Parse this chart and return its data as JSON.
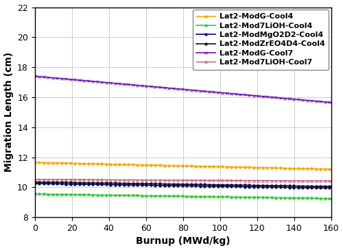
{
  "xlabel": "Burnup (MWd/kg)",
  "ylabel": "Migration Length (cm)",
  "xlim": [
    0,
    160
  ],
  "ylim": [
    8,
    22
  ],
  "yticks": [
    8,
    10,
    12,
    14,
    16,
    18,
    20,
    22
  ],
  "xticks": [
    0,
    20,
    40,
    60,
    80,
    100,
    120,
    140,
    160
  ],
  "series": [
    {
      "label": "Lat2-ModG-Cool4",
      "color": "#FFA500",
      "marker": "o",
      "marker_size": 2.5,
      "marker_every": 3,
      "linestyle": "-",
      "linewidth": 1.2,
      "n_points": 200,
      "y_start": 11.65,
      "y_end": 11.2,
      "open_marker": false
    },
    {
      "label": "Lat2-Mod7LiOH-Cool4",
      "color": "#32CD32",
      "marker": "o",
      "marker_size": 2.5,
      "marker_every": 3,
      "linestyle": "-",
      "linewidth": 1.2,
      "n_points": 200,
      "y_start": 9.55,
      "y_end": 9.25,
      "open_marker": false
    },
    {
      "label": "Lat2-ModMgO2D2-Cool4",
      "color": "#00008B",
      "marker": "o",
      "marker_size": 2.5,
      "marker_every": 3,
      "linestyle": "-",
      "linewidth": 1.2,
      "n_points": 200,
      "y_start": 10.25,
      "y_end": 9.95,
      "open_marker": false
    },
    {
      "label": "Lat2-ModZrEO4D4-Cool4",
      "color": "#111111",
      "marker": "o",
      "marker_size": 2.5,
      "marker_every": 3,
      "linestyle": "-",
      "linewidth": 1.2,
      "n_points": 200,
      "y_start": 10.35,
      "y_end": 10.05,
      "open_marker": false
    },
    {
      "label": "Lat2-ModG-Cool7",
      "color": "#6A0DAD",
      "marker": "x",
      "marker_size": 2.5,
      "marker_every": 3,
      "linestyle": "-",
      "linewidth": 1.2,
      "n_points": 200,
      "y_start": 17.4,
      "y_end": 15.65,
      "open_marker": false
    },
    {
      "label": "Lat2-Mod7LiOH-Cool7",
      "color": "#C05080",
      "marker": "^",
      "marker_size": 2.5,
      "marker_every": 3,
      "linestyle": "-",
      "linewidth": 1.0,
      "n_points": 200,
      "y_start": 10.52,
      "y_end": 10.42,
      "open_marker": true
    }
  ],
  "background_color": "#ffffff",
  "grid_color": "#cccccc",
  "legend_fontsize": 8,
  "axis_fontsize": 10,
  "tick_fontsize": 9
}
